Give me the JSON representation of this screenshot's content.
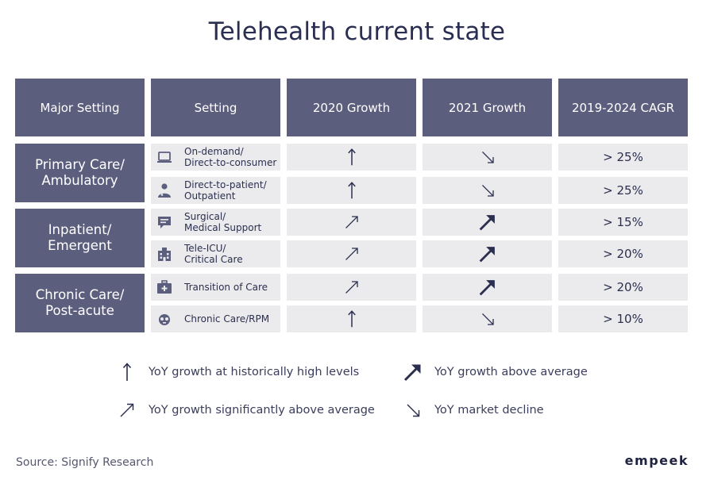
{
  "title": "Telehealth current state",
  "headers": [
    "Major Setting",
    "Setting",
    "2020 Growth",
    "2021 Growth",
    "2019-2024 CAGR"
  ],
  "groups": [
    {
      "label": "Primary Care/\nAmbulatory"
    },
    {
      "label": "Inpatient/\nEmergent"
    },
    {
      "label": "Chronic Care/\nPost-acute"
    }
  ],
  "rows": [
    {
      "setting": "On-demand/\nDirect-to-consumer",
      "icon": "laptop-icon",
      "g2020": "historically-high",
      "g2021": "decline",
      "cagr": "> 25%"
    },
    {
      "setting": "Direct-to-patient/\nOutpatient",
      "icon": "doctor-icon",
      "g2020": "historically-high",
      "g2021": "decline",
      "cagr": "> 25%"
    },
    {
      "setting": "Surgical/\nMedical Support",
      "icon": "chat-icon",
      "g2020": "significantly-above",
      "g2021": "above-average",
      "cagr": "> 15%"
    },
    {
      "setting": "Tele-ICU/\nCritical Care",
      "icon": "hospital-icon",
      "g2020": "significantly-above",
      "g2021": "above-average",
      "cagr": "> 20%"
    },
    {
      "setting": "Transition of Care",
      "icon": "briefcase-medical-icon",
      "g2020": "significantly-above",
      "g2021": "above-average",
      "cagr": "> 20%"
    },
    {
      "setting": "Chronic Care/RPM",
      "icon": "stethoscope-icon",
      "g2020": "historically-high",
      "g2021": "decline",
      "cagr": "> 10%"
    }
  ],
  "legend": {
    "historically_high": "YoY growth at historically high levels",
    "above_average": "YoY growth above average",
    "significantly_above": "YoY growth significantly above average",
    "decline": "YoY market decline"
  },
  "source": "Source: Signify Research",
  "logo": "empeek",
  "colors": {
    "header_bg": "#5c5e7e",
    "cell_bg": "#ebebed",
    "text_dark": "#2b2f4f"
  }
}
